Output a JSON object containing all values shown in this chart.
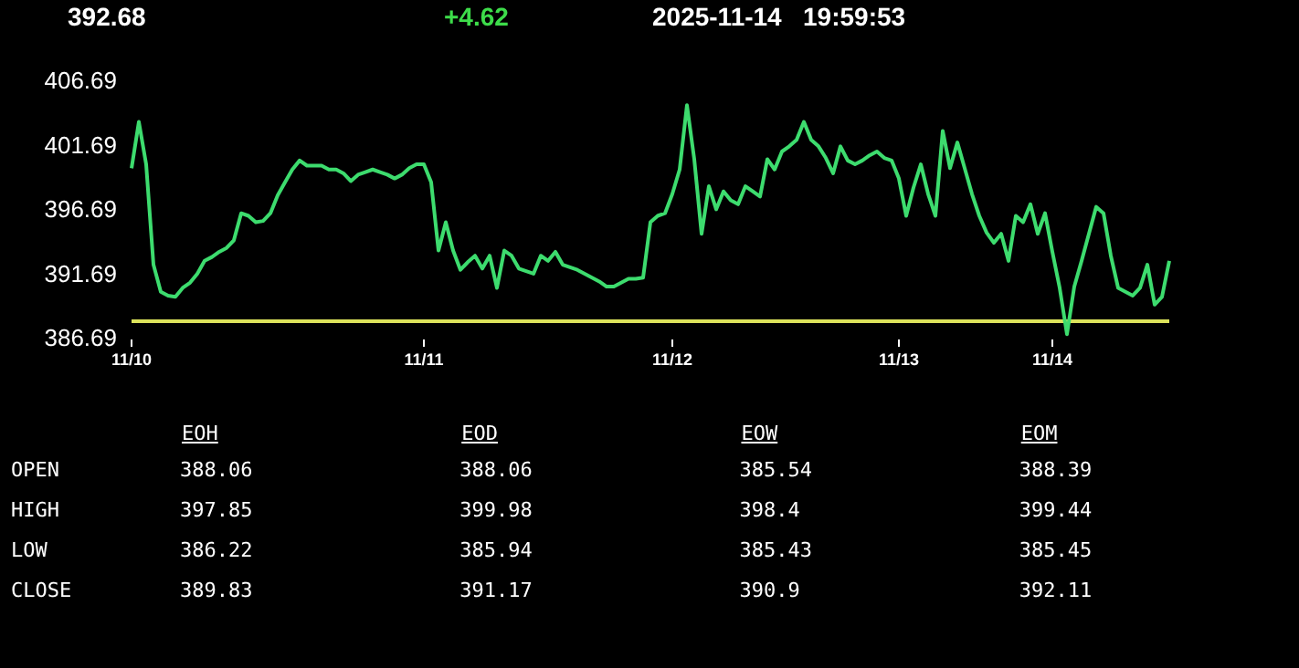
{
  "chart_data": {
    "type": "line",
    "categories": [
      "11/10",
      null,
      null,
      null,
      null,
      null,
      null,
      null,
      null,
      null,
      null,
      null,
      null,
      null,
      null,
      null,
      null,
      null,
      null,
      null,
      null,
      null,
      null,
      null,
      null,
      null,
      null,
      null,
      null,
      null,
      null,
      null,
      null,
      null,
      null,
      null,
      null,
      null,
      null,
      null,
      "11/11",
      null,
      null,
      null,
      null,
      null,
      null,
      null,
      null,
      null,
      null,
      null,
      null,
      null,
      null,
      null,
      null,
      null,
      null,
      null,
      null,
      null,
      null,
      null,
      null,
      null,
      null,
      null,
      null,
      null,
      null,
      null,
      null,
      null,
      "11/12",
      null,
      null,
      null,
      null,
      null,
      null,
      null,
      null,
      null,
      null,
      null,
      null,
      null,
      null,
      null,
      null,
      null,
      null,
      null,
      null,
      null,
      null,
      null,
      null,
      null,
      null,
      null,
      null,
      null,
      null,
      "11/13",
      null,
      null,
      null,
      null,
      null,
      null,
      null,
      null,
      null,
      null,
      null,
      null,
      null,
      null,
      null,
      null,
      null,
      null,
      null,
      null,
      "11/14",
      null,
      null,
      null,
      null,
      null,
      null,
      null,
      null,
      null,
      null,
      null,
      null,
      null,
      null,
      null,
      null
    ],
    "series": [
      {
        "color": "#3ddc6e",
        "values": [
          400.0,
          403.6,
          400.3,
          392.5,
          390.4,
          390.1,
          390.0,
          390.7,
          391.1,
          391.8,
          392.8,
          393.1,
          393.5,
          393.8,
          394.4,
          396.5,
          396.3,
          395.8,
          395.9,
          396.5,
          397.9,
          398.9,
          399.9,
          400.6,
          400.2,
          400.2,
          400.2,
          399.9,
          399.9,
          399.6,
          399.0,
          399.5,
          399.7,
          399.9,
          399.7,
          399.5,
          399.2,
          399.5,
          400.0,
          400.3,
          400.3,
          398.9,
          393.6,
          395.8,
          393.6,
          392.1,
          392.7,
          393.2,
          392.2,
          393.2,
          390.7,
          393.6,
          393.2,
          392.2,
          392.0,
          391.8,
          393.2,
          392.8,
          393.5,
          392.5,
          392.3,
          392.1,
          391.8,
          391.5,
          391.2,
          390.8,
          390.8,
          391.1,
          391.4,
          391.4,
          391.5,
          395.8,
          396.3,
          396.5,
          398.0,
          399.9,
          404.9,
          400.7,
          394.9,
          398.6,
          396.8,
          398.2,
          397.5,
          397.2,
          398.6,
          398.2,
          397.8,
          400.7,
          399.9,
          401.3,
          401.7,
          402.2,
          403.6,
          402.2,
          401.7,
          400.8,
          399.6,
          401.7,
          400.6,
          400.3,
          400.6,
          401.0,
          401.3,
          400.8,
          400.6,
          399.2,
          396.3,
          398.5,
          400.3,
          398.0,
          396.3,
          402.9,
          400.0,
          402.0,
          400.0,
          398.0,
          396.3,
          395.0,
          394.2,
          394.9,
          392.8,
          396.3,
          395.8,
          397.2,
          394.9,
          396.5,
          393.5,
          390.7,
          387.1,
          390.8,
          392.8,
          394.9,
          397.0,
          396.5,
          393.2,
          390.7,
          390.4,
          390.1,
          390.7,
          392.5,
          389.4,
          390.0,
          392.8
        ]
      },
      {
        "color": "#dce35b",
        "values": [
          388.1,
          388.1,
          388.1,
          388.1,
          388.1,
          388.1,
          388.1,
          388.1,
          388.1,
          388.1,
          388.1,
          388.1,
          388.1,
          388.1,
          388.1,
          388.1,
          388.1,
          388.1,
          388.1,
          388.1,
          388.1,
          388.1,
          388.1,
          388.1,
          388.1,
          388.1,
          388.1,
          388.1,
          388.1,
          388.1,
          388.1,
          388.1,
          388.1,
          388.1,
          388.1,
          388.1,
          388.1,
          388.1,
          388.1,
          388.1,
          388.1,
          388.1,
          388.1,
          388.1,
          388.1,
          388.1,
          388.1,
          388.1,
          388.1,
          388.1,
          388.1,
          388.1,
          388.1,
          388.1,
          388.1,
          388.1,
          388.1,
          388.1,
          388.1,
          388.1,
          388.1,
          388.1,
          388.1,
          388.1,
          388.1,
          388.1,
          388.1,
          388.1,
          388.1,
          388.1,
          388.1,
          388.1,
          388.1,
          388.1,
          388.1,
          388.1,
          388.1,
          388.1,
          388.1,
          388.1,
          388.1,
          388.1,
          388.1,
          388.1,
          388.1,
          388.1,
          388.1,
          388.1,
          388.1,
          388.1,
          388.1,
          388.1,
          388.1,
          388.1,
          388.1,
          388.1,
          388.1,
          388.1,
          388.1,
          388.1,
          388.1,
          388.1,
          388.1,
          388.1,
          388.1,
          388.1,
          388.1,
          388.1,
          388.1,
          388.1,
          388.1,
          388.1,
          388.1,
          388.1,
          388.1,
          388.1,
          388.1,
          388.1,
          388.1,
          388.1,
          388.1,
          388.1,
          388.1,
          388.1,
          388.1,
          388.1,
          388.1,
          388.1,
          388.1,
          388.1,
          388.1,
          388.1,
          388.1,
          388.1,
          388.1,
          388.1,
          388.1,
          388.1,
          388.1,
          388.1,
          388.1,
          388.1,
          388.1
        ]
      }
    ],
    "ylim": [
      386.69,
      406.69
    ],
    "yticks": [
      386.69,
      391.69,
      396.69,
      401.69,
      406.69
    ],
    "grid": false,
    "legend": false,
    "marker": "none",
    "line_style": "solid",
    "annotations": [
      "392.68",
      "+4.62",
      "2025-11-14   19:59:53",
      "EOH",
      "EOD",
      "EOW",
      "EOM",
      "OPEN",
      "388.06",
      "388.06",
      "385.54",
      "388.39",
      "HIGH",
      "397.85",
      "399.98",
      "398.4",
      "399.44",
      "LOW",
      "386.22",
      "385.94",
      "385.43",
      "385.45",
      "CLOSE",
      "389.83",
      "391.17",
      "390.9",
      "392.11"
    ]
  }
}
